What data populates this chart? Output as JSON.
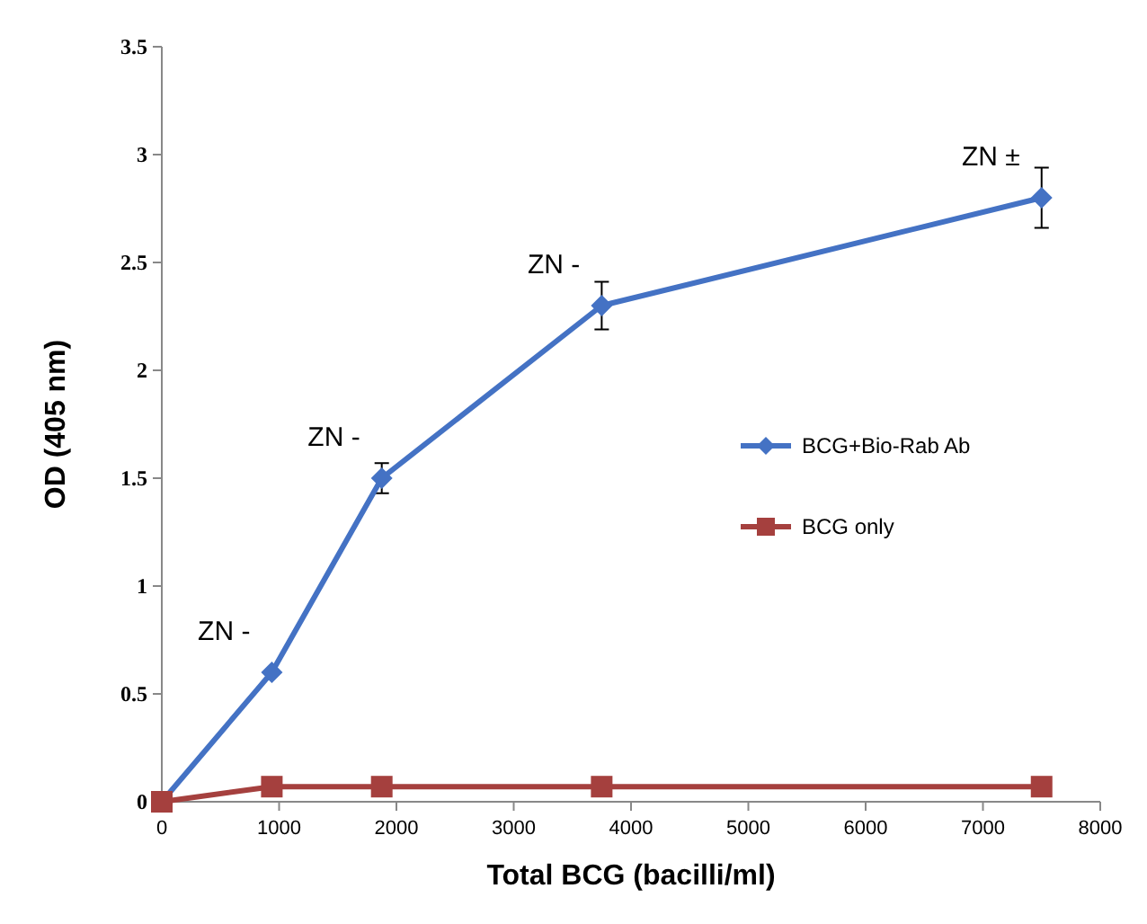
{
  "chart_data": {
    "type": "line",
    "xlabel": "Total BCG (bacilli/ml)",
    "ylabel": "OD (405 nm)",
    "x": [
      0,
      938,
      1875,
      3750,
      7500
    ],
    "xlim": [
      0,
      8000
    ],
    "xticks": [
      0,
      1000,
      2000,
      3000,
      4000,
      5000,
      6000,
      7000,
      8000
    ],
    "ylim": [
      0,
      3.5
    ],
    "yticks": [
      0,
      0.5,
      1,
      1.5,
      2,
      2.5,
      3,
      3.5
    ],
    "series": [
      {
        "name": "BCG+Bio-Rab Ab",
        "color": "#4472c4",
        "marker": "diamond",
        "values": [
          0,
          0.6,
          1.5,
          2.3,
          2.8
        ],
        "errors": [
          null,
          null,
          0.07,
          0.11,
          0.14
        ]
      },
      {
        "name": "BCG only",
        "color": "#a5403e",
        "marker": "square",
        "values": [
          0,
          0.07,
          0.07,
          0.07,
          0.07
        ]
      }
    ],
    "annotations": [
      {
        "text": "ZN -",
        "x": 938,
        "y": 0.6
      },
      {
        "text": "ZN -",
        "x": 1875,
        "y": 1.5
      },
      {
        "text": "ZN -",
        "x": 3750,
        "y": 2.3
      },
      {
        "text": "ZN ±",
        "x": 7500,
        "y": 2.8
      }
    ],
    "grid": false,
    "legend": "right"
  }
}
